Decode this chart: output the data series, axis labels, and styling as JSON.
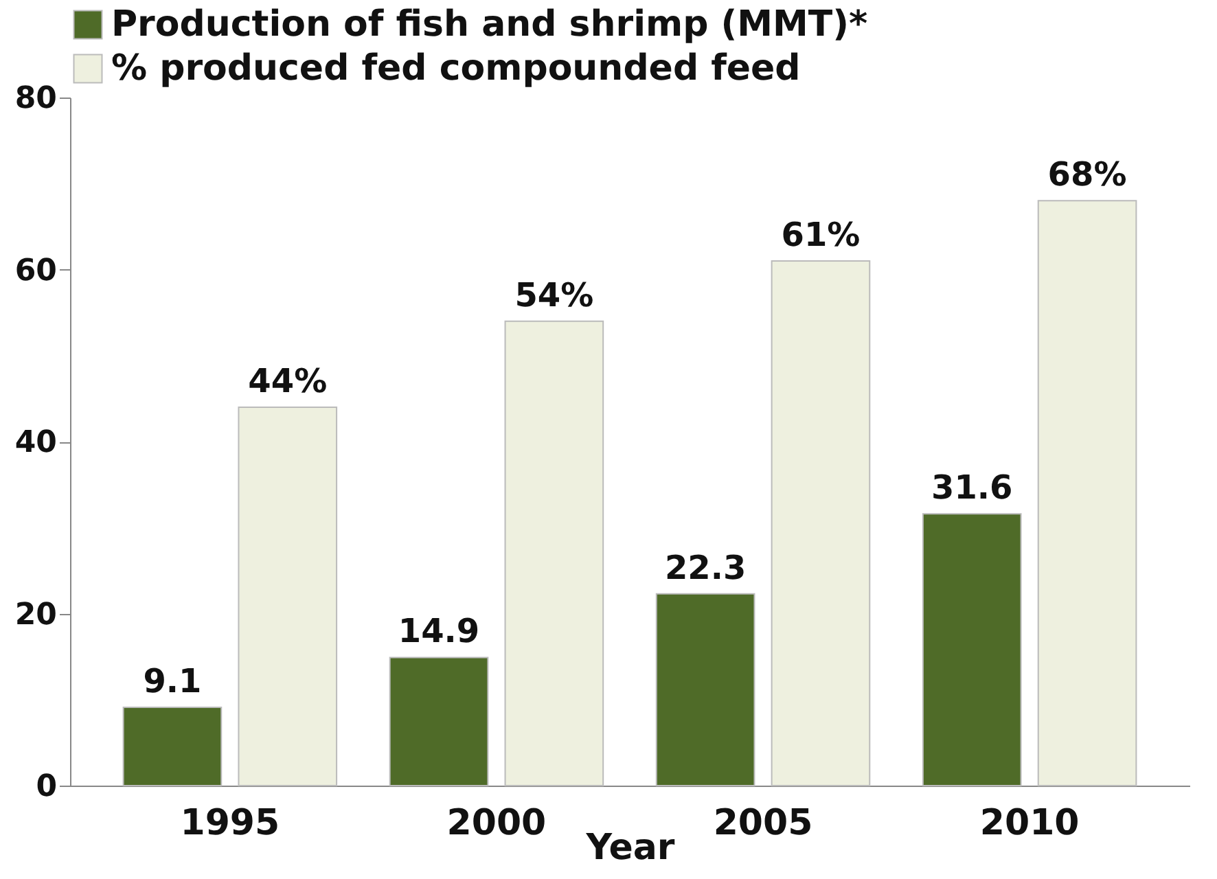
{
  "chart_data": {
    "type": "bar",
    "xlabel": "Year",
    "categories": [
      "1995",
      "2000",
      "2005",
      "2010"
    ],
    "series": [
      {
        "name": "Production of fish and shrimp (MMT)*",
        "color": "#4f6b28",
        "values": [
          9.1,
          14.9,
          22.3,
          31.6
        ],
        "value_labels": [
          "9.1",
          "14.9",
          "22.3",
          "31.6"
        ]
      },
      {
        "name": "% produced fed compounded feed",
        "color": "#eef0df",
        "values": [
          44,
          54,
          61,
          68
        ],
        "value_labels": [
          "44%",
          "54%",
          "61%",
          "68%"
        ]
      }
    ],
    "ylim": [
      0,
      80
    ],
    "yticks": [
      0,
      20,
      40,
      60,
      80
    ],
    "grid": false,
    "legend": "top"
  }
}
